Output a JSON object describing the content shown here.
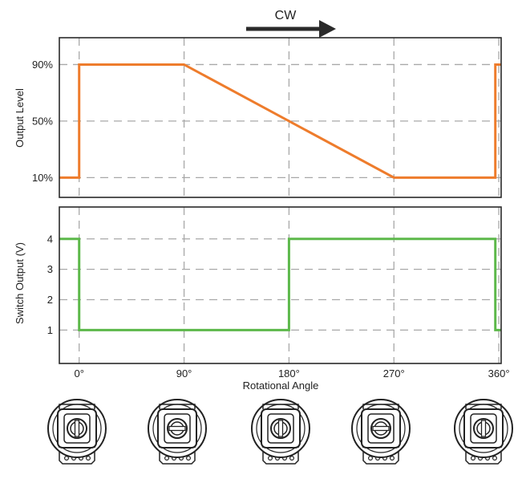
{
  "direction_label": "CW",
  "chart_data": [
    {
      "type": "line",
      "ylabel": "Output Level",
      "yticks": [
        "10%",
        "50%",
        "90%"
      ],
      "ytick_values": [
        10,
        50,
        90
      ],
      "xlim": [
        -17,
        362
      ],
      "ylim": [
        -4,
        109
      ],
      "grid": true,
      "xgrid": [
        0,
        90,
        180,
        270,
        360
      ],
      "color": "#ee7c2c",
      "series": [
        {
          "x": [
            -17,
            0,
            0,
            90,
            270,
            357,
            357,
            362
          ],
          "values": [
            10,
            10,
            90,
            90,
            10,
            10,
            90,
            90
          ]
        }
      ]
    },
    {
      "type": "line",
      "ylabel": "Switch Output (V)",
      "yticks": [
        "1",
        "2",
        "3",
        "4"
      ],
      "ytick_values": [
        1,
        2,
        3,
        4
      ],
      "xlabel": "Rotational Angle",
      "xticks": [
        "0°",
        "90°",
        "180°",
        "270°",
        "360°"
      ],
      "xtick_values": [
        0,
        90,
        180,
        270,
        360
      ],
      "xlim": [
        -17,
        362
      ],
      "ylim": [
        -0.1,
        5.05
      ],
      "grid": true,
      "xgrid": [
        0,
        90,
        180,
        270,
        360
      ],
      "color": "#5cb84a",
      "series": [
        {
          "x": [
            -17,
            0,
            0,
            180,
            180,
            357,
            357,
            362
          ],
          "values": [
            4,
            4,
            1,
            1,
            4,
            4,
            1,
            1
          ]
        }
      ]
    }
  ],
  "knobs": [
    {
      "angle_deg": 0
    },
    {
      "angle_deg": 90
    },
    {
      "angle_deg": 180
    },
    {
      "angle_deg": 270
    },
    {
      "angle_deg": 360
    }
  ]
}
